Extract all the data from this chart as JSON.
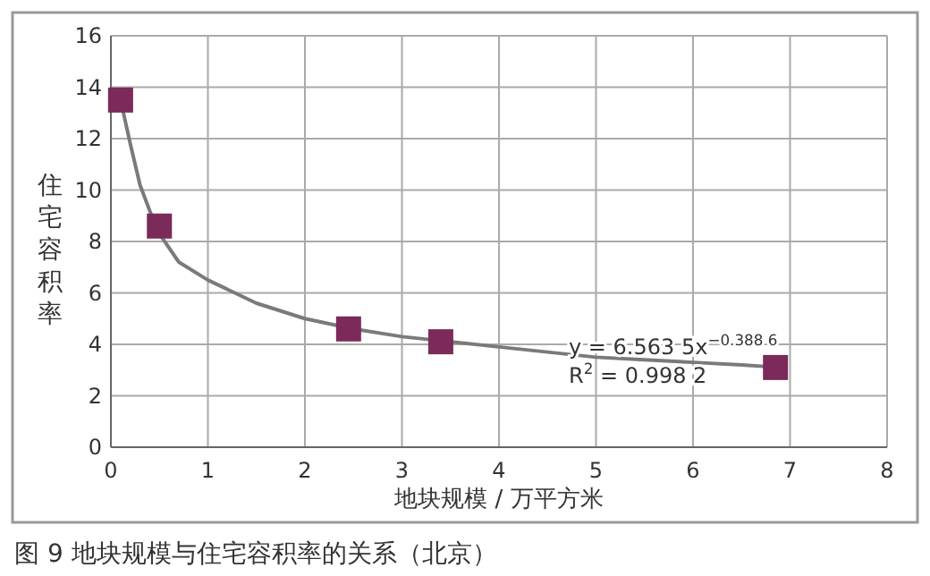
{
  "chart_data": {
    "type": "scatter",
    "title": "图 9  地块规模与住宅容积率的关系（北京）",
    "xlabel": "地块规模 / 万平方米",
    "ylabel": "住宅容积率",
    "xlim": [
      0,
      8
    ],
    "xticks": [
      0,
      1,
      2,
      3,
      4,
      5,
      6,
      7,
      8
    ],
    "ylim": [
      0,
      16
    ],
    "yticks": [
      0,
      2,
      4,
      6,
      8,
      10,
      12,
      14,
      16
    ],
    "grid": true,
    "series": [
      {
        "type": "line",
        "color": "#7a7a7a",
        "marker": "none",
        "line_style": "solid",
        "x": [
          0.1,
          0.2,
          0.3,
          0.4,
          0.5,
          0.7,
          1,
          1.5,
          2,
          2.5,
          3,
          3.5,
          4,
          4.5,
          5,
          5.5,
          6,
          6.5,
          6.9
        ],
        "values": [
          13.5,
          11.8,
          10.2,
          9.2,
          8.3,
          7.2,
          6.5,
          5.6,
          5.0,
          4.6,
          4.3,
          4.1,
          3.9,
          3.7,
          3.5,
          3.4,
          3.3,
          3.2,
          3.1
        ]
      },
      {
        "color": "#7b2a5a",
        "marker": "square",
        "x": [
          0.1,
          0.5,
          2.45,
          3.4,
          6.85
        ],
        "values": [
          13.5,
          8.6,
          4.6,
          4.1,
          3.1
        ]
      }
    ],
    "annotations": [
      "y = 6.563 5x$^{−0.388 6}$",
      "R$^{2}$ = 0.998 2"
    ]
  }
}
